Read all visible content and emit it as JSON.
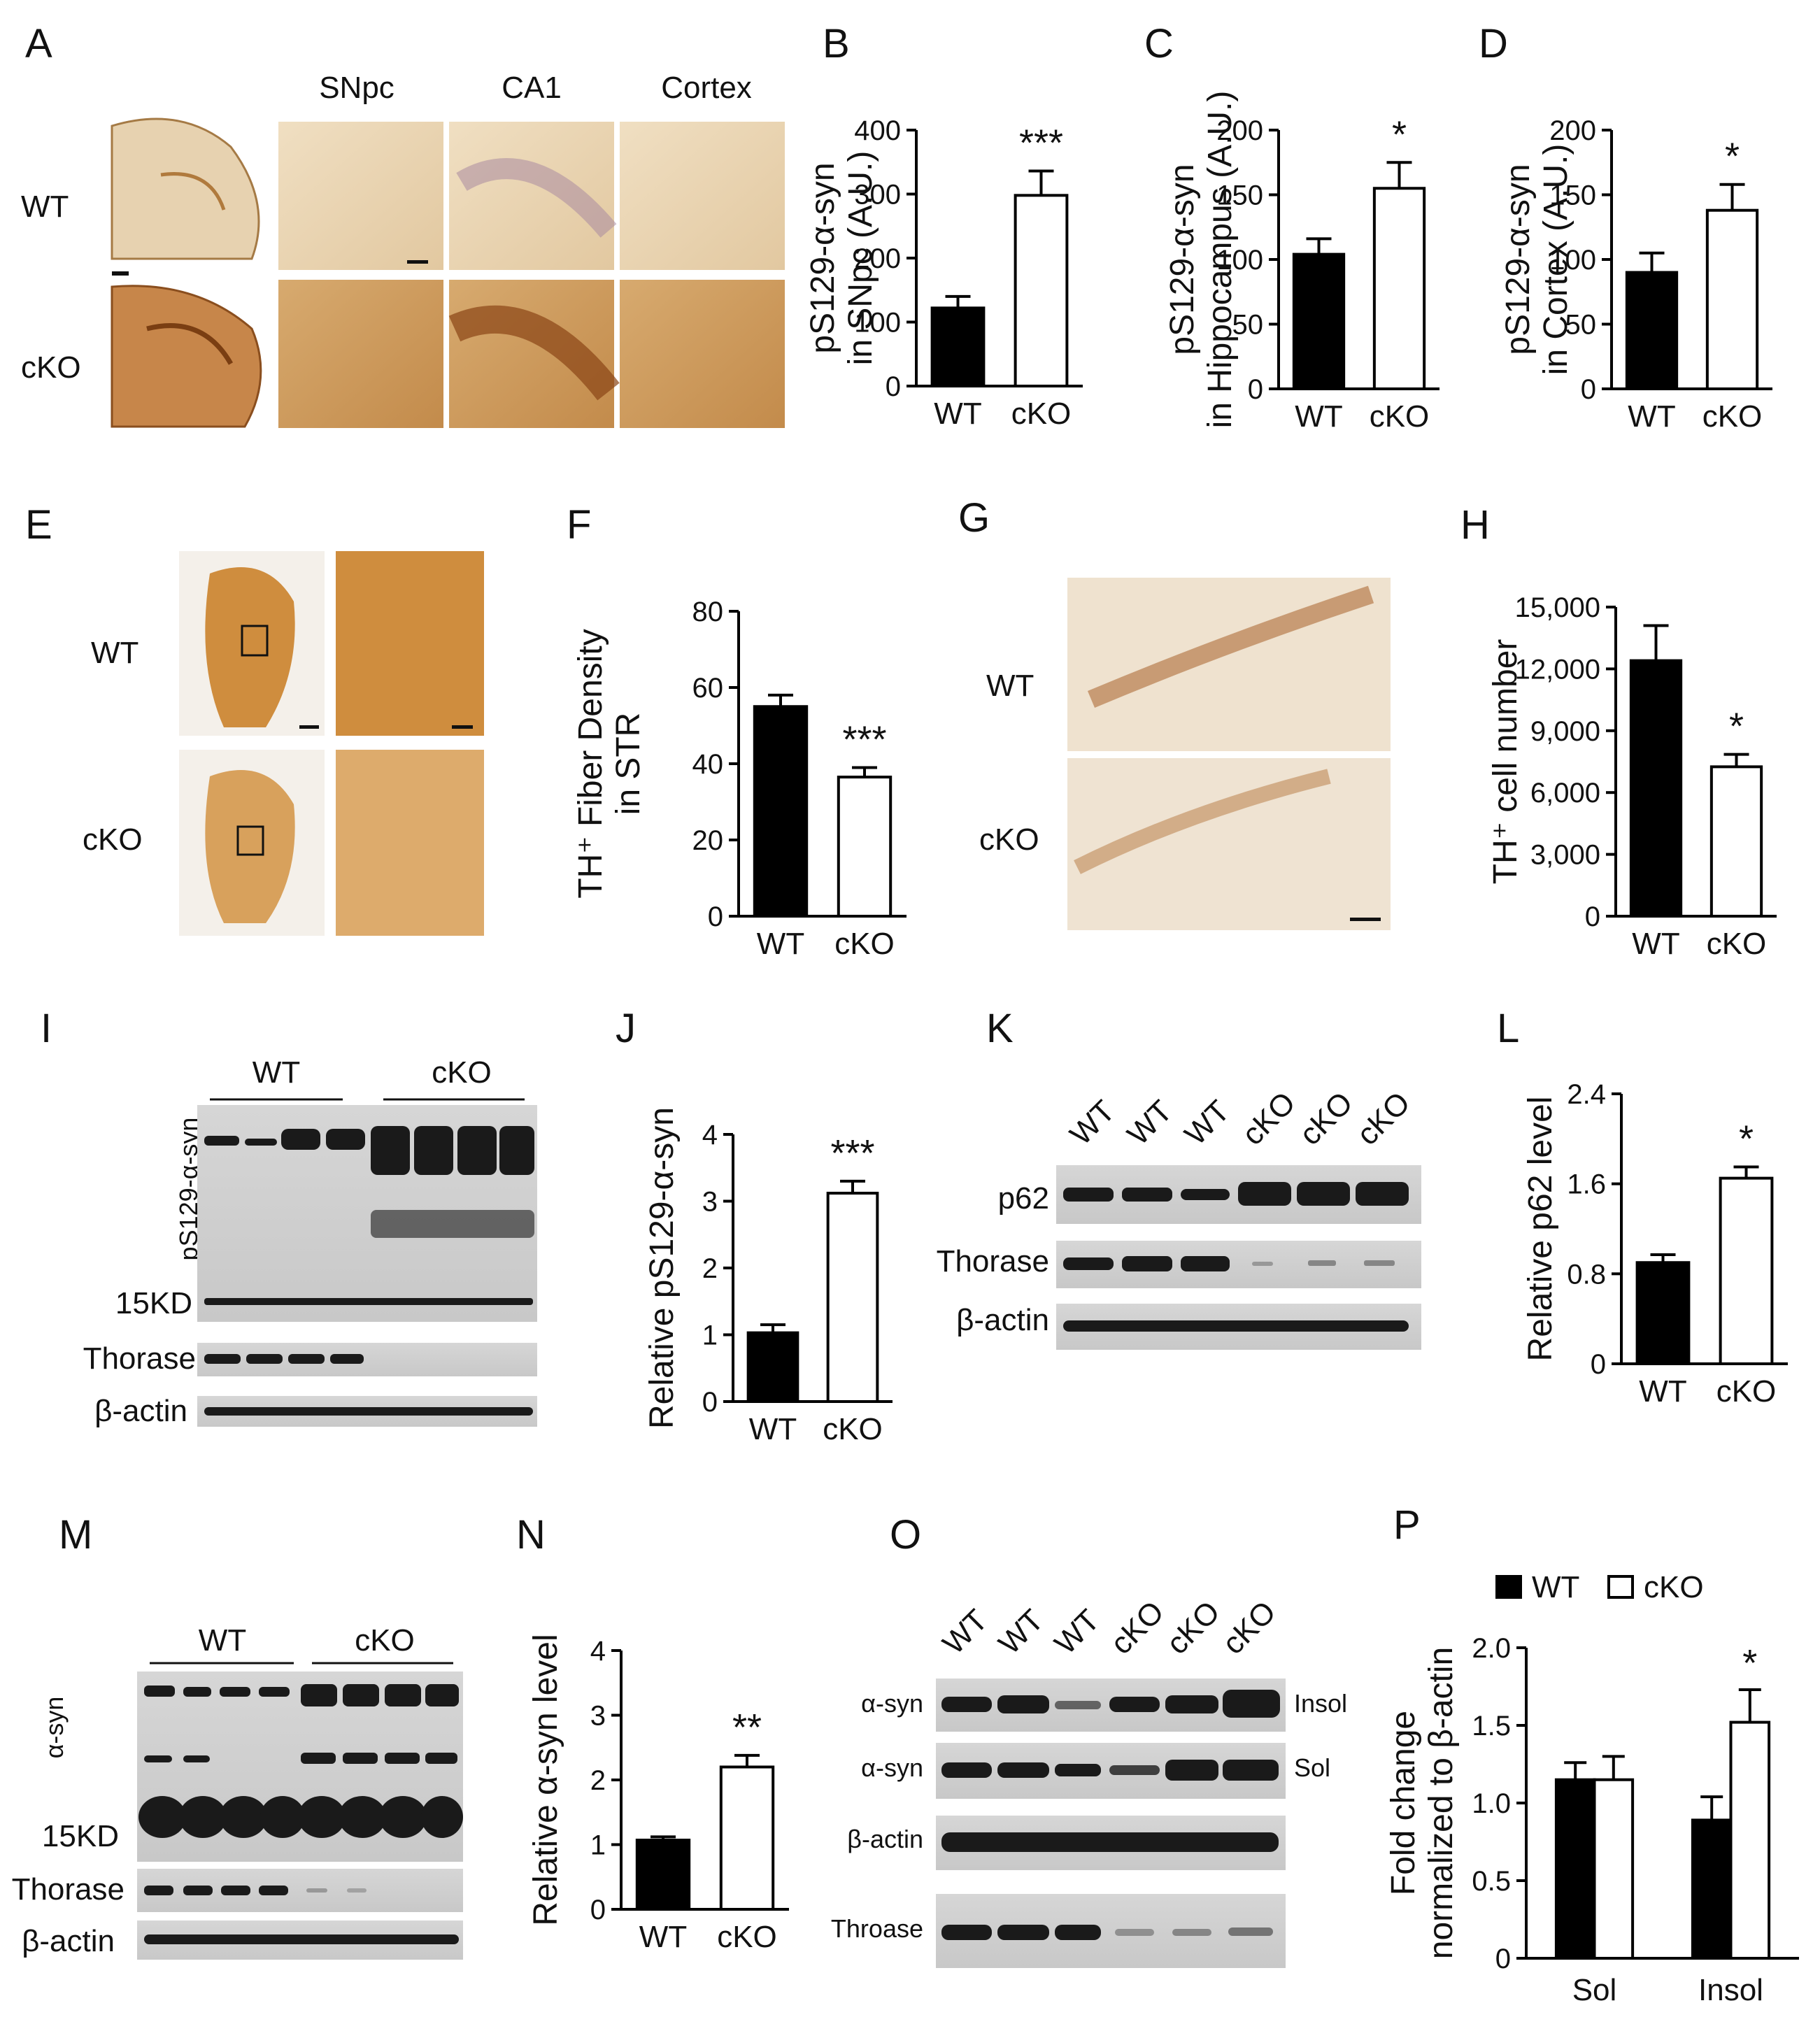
{
  "colors": {
    "wt_fill": "#000000",
    "cko_fill": "#ffffff",
    "stroke": "#000000",
    "brown_light": "#e6cfa8",
    "brown_dark": "#b8752e",
    "tissue": "#dc9a45"
  },
  "panel_labels": [
    "A",
    "B",
    "C",
    "D",
    "E",
    "F",
    "G",
    "H",
    "I",
    "J",
    "K",
    "L",
    "M",
    "N",
    "O",
    "P"
  ],
  "panel_a": {
    "rows": [
      "WT",
      "cKO"
    ],
    "cols": [
      "SNpc",
      "CA1",
      "Cortex"
    ]
  },
  "panel_e": {
    "rows": [
      "WT",
      "cKO"
    ]
  },
  "panel_g": {
    "rows": [
      "WT",
      "cKO"
    ]
  },
  "panel_i": {
    "groups": [
      "WT",
      "cKO"
    ],
    "rows": [
      "pS129-α-syn",
      "15KD",
      "Thorase",
      "β-actin"
    ]
  },
  "panel_k": {
    "lanes": [
      "WT",
      "WT",
      "WT",
      "cKO",
      "cKO",
      "cKO"
    ],
    "rows": [
      "p62",
      "Thorase",
      "β-actin"
    ]
  },
  "panel_m": {
    "groups": [
      "WT",
      "cKO"
    ],
    "rows": [
      "α-syn",
      "15KD",
      "Thorase",
      "β-actin"
    ]
  },
  "panel_o": {
    "lanes": [
      "WT",
      "WT",
      "WT",
      "cKO",
      "cKO",
      "cKO"
    ],
    "rows": [
      "α-syn",
      "α-syn",
      "β-actin",
      "Throase"
    ],
    "side": [
      "Insol",
      "Sol"
    ]
  },
  "chart_data": [
    {
      "panel": "B",
      "type": "bar",
      "categories": [
        "WT",
        "cKO"
      ],
      "values": [
        122,
        298
      ],
      "errors": [
        18,
        38
      ],
      "ylabel_lines": [
        "pS129-α-syn",
        "in SNpc (A.U.)"
      ],
      "ylim": [
        0,
        400
      ],
      "yticks": [
        "0",
        "100",
        "200",
        "300",
        "400"
      ],
      "significance": "***"
    },
    {
      "panel": "C",
      "type": "bar",
      "categories": [
        "WT",
        "cKO"
      ],
      "values": [
        104,
        155
      ],
      "errors": [
        12,
        20
      ],
      "ylabel_lines": [
        "pS129-α-syn",
        "in Hippocampus (A.U.)"
      ],
      "ylim": [
        0,
        200
      ],
      "yticks": [
        "0",
        "50",
        "100",
        "150",
        "200"
      ],
      "significance": "*"
    },
    {
      "panel": "D",
      "type": "bar",
      "categories": [
        "WT",
        "cKO"
      ],
      "values": [
        90,
        138
      ],
      "errors": [
        15,
        20
      ],
      "ylabel_lines": [
        "pS129-α-syn",
        "in Cortex (A.U.)"
      ],
      "ylim": [
        0,
        200
      ],
      "yticks": [
        "0",
        "50",
        "100",
        "150",
        "200"
      ],
      "significance": "*"
    },
    {
      "panel": "F",
      "type": "bar",
      "categories": [
        "WT",
        "cKO"
      ],
      "values": [
        55,
        36.5
      ],
      "errors": [
        3,
        2.5
      ],
      "ylabel_lines": [
        "TH⁺ Fiber Density",
        "in STR"
      ],
      "ylim": [
        0,
        80
      ],
      "yticks": [
        "0",
        "20",
        "40",
        "60",
        "80"
      ],
      "significance": "***"
    },
    {
      "panel": "H",
      "type": "bar",
      "categories": [
        "WT",
        "cKO"
      ],
      "values": [
        12400,
        7250
      ],
      "errors": [
        1700,
        600
      ],
      "ylabel_lines": [
        "TH⁺ cell number"
      ],
      "ylim": [
        0,
        15000
      ],
      "yticks": [
        "0",
        "3,000",
        "6,000",
        "9,000",
        "12,000",
        "15,000"
      ],
      "significance": "*"
    },
    {
      "panel": "J",
      "type": "bar",
      "categories": [
        "WT",
        "cKO"
      ],
      "values": [
        1.03,
        3.12
      ],
      "errors": [
        0.12,
        0.18
      ],
      "ylabel_lines": [
        "Relative pS129-α-syn"
      ],
      "ylim": [
        0,
        4
      ],
      "yticks": [
        "0",
        "1",
        "2",
        "3",
        "4"
      ],
      "significance": "***"
    },
    {
      "panel": "L",
      "type": "bar",
      "categories": [
        "WT",
        "cKO"
      ],
      "values": [
        0.9,
        1.65
      ],
      "errors": [
        0.07,
        0.1
      ],
      "ylabel_lines": [
        "Relative p62 level"
      ],
      "ylim": [
        0,
        2.4
      ],
      "yticks": [
        "0",
        "0.8",
        "1.6",
        "2.4"
      ],
      "significance": "*"
    },
    {
      "panel": "N",
      "type": "bar",
      "categories": [
        "WT",
        "cKO"
      ],
      "values": [
        1.07,
        2.2
      ],
      "errors": [
        0.05,
        0.18
      ],
      "ylabel_lines": [
        "Relative α-syn level"
      ],
      "ylim": [
        0,
        4
      ],
      "yticks": [
        "0",
        "1",
        "2",
        "3",
        "4"
      ],
      "significance": "**"
    },
    {
      "panel": "P",
      "type": "bar",
      "categories": [
        "Sol",
        "Insol"
      ],
      "series": [
        {
          "name": "WT",
          "values": [
            1.15,
            0.89
          ],
          "errors": [
            0.11,
            0.15
          ]
        },
        {
          "name": "cKO",
          "values": [
            1.15,
            1.52
          ],
          "errors": [
            0.15,
            0.21
          ]
        }
      ],
      "ylabel_lines": [
        "Fold change",
        "normalized to β-actin"
      ],
      "ylim": [
        0,
        2.0
      ],
      "yticks": [
        "0",
        "0.5",
        "1.0",
        "1.5",
        "2.0"
      ],
      "significance": "*",
      "legend": "top"
    }
  ]
}
